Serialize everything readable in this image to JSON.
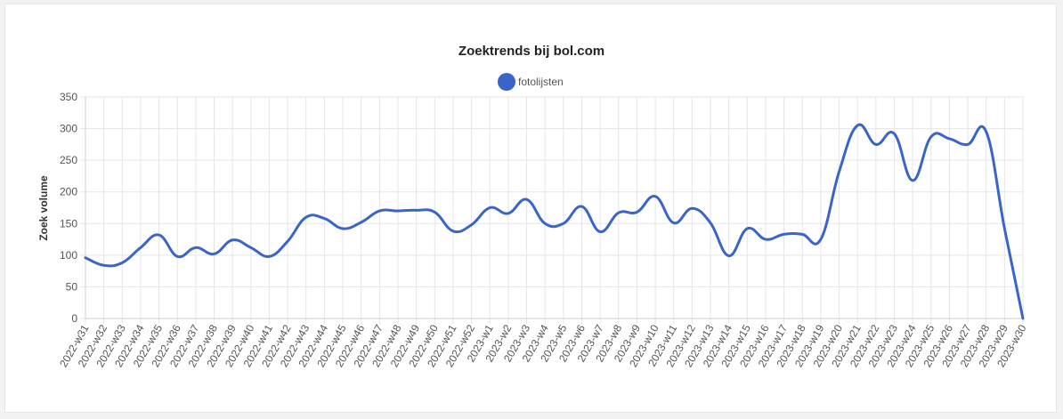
{
  "chart_data": {
    "type": "line",
    "title": "Zoektrends bij bol.com",
    "ylabel": "Zoek volume",
    "ylim": [
      0,
      350
    ],
    "yticks": [
      0,
      50,
      100,
      150,
      200,
      250,
      300,
      350
    ],
    "grid": true,
    "legend_position": "top",
    "categories": [
      "2022-w31",
      "2022-w32",
      "2022-w33",
      "2022-w34",
      "2022-w35",
      "2022-w36",
      "2022-w37",
      "2022-w38",
      "2022-w39",
      "2022-w40",
      "2022-w41",
      "2022-w42",
      "2022-w43",
      "2022-w44",
      "2022-w45",
      "2022-w46",
      "2022-w47",
      "2022-w48",
      "2022-w49",
      "2022-w50",
      "2022-w51",
      "2022-w52",
      "2023-w1",
      "2023-w2",
      "2023-w3",
      "2023-w4",
      "2023-w5",
      "2023-w6",
      "2023-w7",
      "2023-w8",
      "2023-w9",
      "2023-w10",
      "2023-w11",
      "2023-w12",
      "2023-w13",
      "2023-w14",
      "2023-w15",
      "2023-w16",
      "2023-w17",
      "2023-w18",
      "2023-w19",
      "2023-w20",
      "2023-w21",
      "2023-w22",
      "2023-w23",
      "2023-w24",
      "2023-w25",
      "2023-w26",
      "2023-w27",
      "2023-w28",
      "2023-w29",
      "2023-w30"
    ],
    "series": [
      {
        "name": "fotolijsten",
        "color": "#3a65c8",
        "values": [
          96,
          84,
          88,
          112,
          132,
          98,
          112,
          102,
          124,
          112,
          98,
          122,
          160,
          158,
          142,
          152,
          170,
          170,
          171,
          168,
          138,
          148,
          175,
          166,
          188,
          150,
          150,
          177,
          137,
          167,
          168,
          193,
          151,
          174,
          151,
          99,
          142,
          125,
          133,
          133,
          125,
          232,
          305,
          275,
          292,
          218,
          287,
          284,
          275,
          295,
          142,
          0
        ]
      }
    ]
  }
}
